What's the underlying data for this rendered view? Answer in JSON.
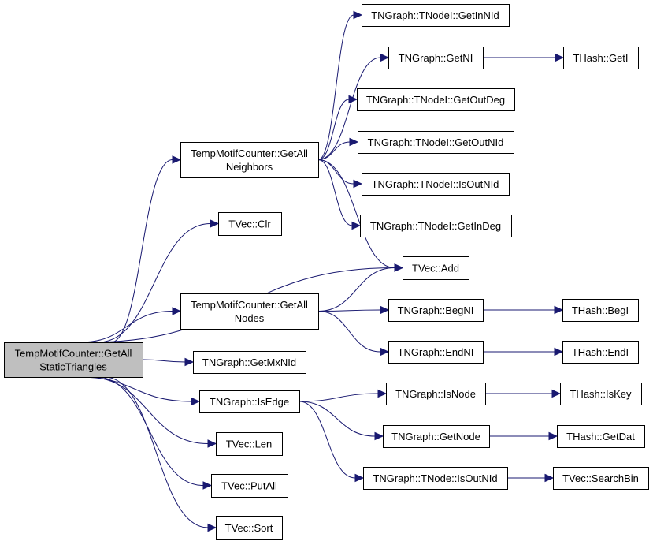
{
  "graph": {
    "edge_color": "#191970",
    "root_fill": "#bfbfbf",
    "nodes": [
      {
        "id": "root",
        "lines": [
          "TempMotifCounter::GetAll",
          "StaticTriangles"
        ],
        "root": true
      },
      {
        "id": "nbrs",
        "lines": [
          "TempMotifCounter::GetAll",
          "Neighbors"
        ]
      },
      {
        "id": "clr",
        "lines": [
          "TVec::Clr"
        ]
      },
      {
        "id": "nodes",
        "lines": [
          "TempMotifCounter::GetAll",
          "Nodes"
        ]
      },
      {
        "id": "mxnid",
        "lines": [
          "TNGraph::GetMxNId"
        ]
      },
      {
        "id": "isedge",
        "lines": [
          "TNGraph::IsEdge"
        ]
      },
      {
        "id": "len",
        "lines": [
          "TVec::Len"
        ]
      },
      {
        "id": "putall",
        "lines": [
          "TVec::PutAll"
        ]
      },
      {
        "id": "sort",
        "lines": [
          "TVec::Sort"
        ]
      },
      {
        "id": "getinnid",
        "lines": [
          "TNGraph::TNodeI::GetInNId"
        ]
      },
      {
        "id": "getni",
        "lines": [
          "TNGraph::GetNI"
        ]
      },
      {
        "id": "getoutdeg",
        "lines": [
          "TNGraph::TNodeI::GetOutDeg"
        ]
      },
      {
        "id": "getoutnid",
        "lines": [
          "TNGraph::TNodeI::GetOutNId"
        ]
      },
      {
        "id": "isoutnidi",
        "lines": [
          "TNGraph::TNodeI::IsOutNId"
        ]
      },
      {
        "id": "getindeg",
        "lines": [
          "TNGraph::TNodeI::GetInDeg"
        ]
      },
      {
        "id": "add",
        "lines": [
          "TVec::Add"
        ]
      },
      {
        "id": "begni",
        "lines": [
          "TNGraph::BegNI"
        ]
      },
      {
        "id": "endni",
        "lines": [
          "TNGraph::EndNI"
        ]
      },
      {
        "id": "isnode",
        "lines": [
          "TNGraph::IsNode"
        ]
      },
      {
        "id": "getnode",
        "lines": [
          "TNGraph::GetNode"
        ]
      },
      {
        "id": "isoutnid",
        "lines": [
          "TNGraph::TNode::IsOutNId"
        ]
      },
      {
        "id": "geti",
        "lines": [
          "THash::GetI"
        ]
      },
      {
        "id": "begi",
        "lines": [
          "THash::BegI"
        ]
      },
      {
        "id": "endi",
        "lines": [
          "THash::EndI"
        ]
      },
      {
        "id": "iskey",
        "lines": [
          "THash::IsKey"
        ]
      },
      {
        "id": "getdat",
        "lines": [
          "THash::GetDat"
        ]
      },
      {
        "id": "searchbin",
        "lines": [
          "TVec::SearchBin"
        ]
      }
    ],
    "edges": [
      [
        "root",
        "nbrs"
      ],
      [
        "root",
        "clr"
      ],
      [
        "root",
        "add"
      ],
      [
        "root",
        "nodes"
      ],
      [
        "root",
        "mxnid"
      ],
      [
        "root",
        "isedge"
      ],
      [
        "root",
        "len"
      ],
      [
        "root",
        "putall"
      ],
      [
        "root",
        "sort"
      ],
      [
        "nbrs",
        "getinnid"
      ],
      [
        "nbrs",
        "getni"
      ],
      [
        "nbrs",
        "getoutdeg"
      ],
      [
        "nbrs",
        "getoutnid"
      ],
      [
        "nbrs",
        "isoutnidi"
      ],
      [
        "nbrs",
        "getindeg"
      ],
      [
        "nbrs",
        "add"
      ],
      [
        "getni",
        "geti"
      ],
      [
        "nodes",
        "add"
      ],
      [
        "nodes",
        "begni"
      ],
      [
        "nodes",
        "endni"
      ],
      [
        "begni",
        "begi"
      ],
      [
        "endni",
        "endi"
      ],
      [
        "isedge",
        "isnode"
      ],
      [
        "isedge",
        "getnode"
      ],
      [
        "isedge",
        "isoutnid"
      ],
      [
        "isnode",
        "iskey"
      ],
      [
        "getnode",
        "getdat"
      ],
      [
        "isoutnid",
        "searchbin"
      ]
    ]
  }
}
